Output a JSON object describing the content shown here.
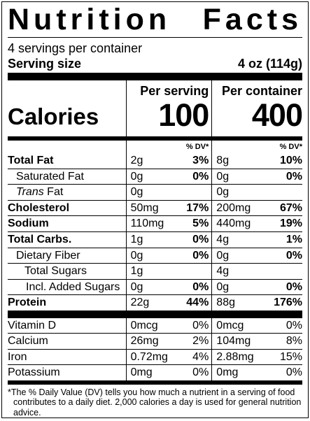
{
  "title_left": "Nutrition",
  "title_right": "Facts",
  "servings": "4 servings per container",
  "serving_size_label": "Serving size",
  "serving_size_value": "4 oz (114g)",
  "per_serving_label": "Per serving",
  "per_container_label": "Per container",
  "calories_label": "Calories",
  "calories_serving": "100",
  "calories_container": "400",
  "dv_label": "% DV*",
  "nutrients": [
    {
      "name": "Total Fat",
      "s_amt": "2g",
      "s_dv": "3%",
      "c_amt": "8g",
      "c_dv": "10%"
    },
    {
      "name": "Saturated Fat",
      "s_amt": "0g",
      "s_dv": "0%",
      "c_amt": "0g",
      "c_dv": "0%"
    },
    {
      "name_italic": "Trans",
      "name": " Fat",
      "s_amt": "0g",
      "s_dv": "",
      "c_amt": "0g",
      "c_dv": ""
    },
    {
      "name": "Cholesterol",
      "s_amt": "50mg",
      "s_dv": "17%",
      "c_amt": "200mg",
      "c_dv": "67%"
    },
    {
      "name": "Sodium",
      "s_amt": "110mg",
      "s_dv": "5%",
      "c_amt": "440mg",
      "c_dv": "19%"
    },
    {
      "name": "Total Carbs.",
      "s_amt": "1g",
      "s_dv": "0%",
      "c_amt": "4g",
      "c_dv": "1%"
    },
    {
      "name": "Dietary Fiber",
      "s_amt": "0g",
      "s_dv": "0%",
      "c_amt": "0g",
      "c_dv": "0%"
    },
    {
      "name": "Total Sugars",
      "s_amt": "1g",
      "s_dv": "",
      "c_amt": "4g",
      "c_dv": ""
    },
    {
      "name": "Incl. Added Sugars",
      "s_amt": "0g",
      "s_dv": "0%",
      "c_amt": "0g",
      "c_dv": "0%"
    },
    {
      "name": "Protein",
      "s_amt": "22g",
      "s_dv": "44%",
      "c_amt": "88g",
      "c_dv": "176%"
    }
  ],
  "vitamins": [
    {
      "name": "Vitamin D",
      "s_amt": "0mcg",
      "s_dv": "0%",
      "c_amt": "0mcg",
      "c_dv": "0%"
    },
    {
      "name": "Calcium",
      "s_amt": "26mg",
      "s_dv": "2%",
      "c_amt": "104mg",
      "c_dv": "8%"
    },
    {
      "name": "Iron",
      "s_amt": "0.72mg",
      "s_dv": "4%",
      "c_amt": "2.88mg",
      "c_dv": "15%"
    },
    {
      "name": "Potassium",
      "s_amt": "0mg",
      "s_dv": "0%",
      "c_amt": "0mg",
      "c_dv": "0%"
    }
  ],
  "footnote": "*The % Daily Value (DV) tells you how much a nutrient in a serving of food contributes to a daily diet. 2,000 calories a day is used for general nutrition advice."
}
